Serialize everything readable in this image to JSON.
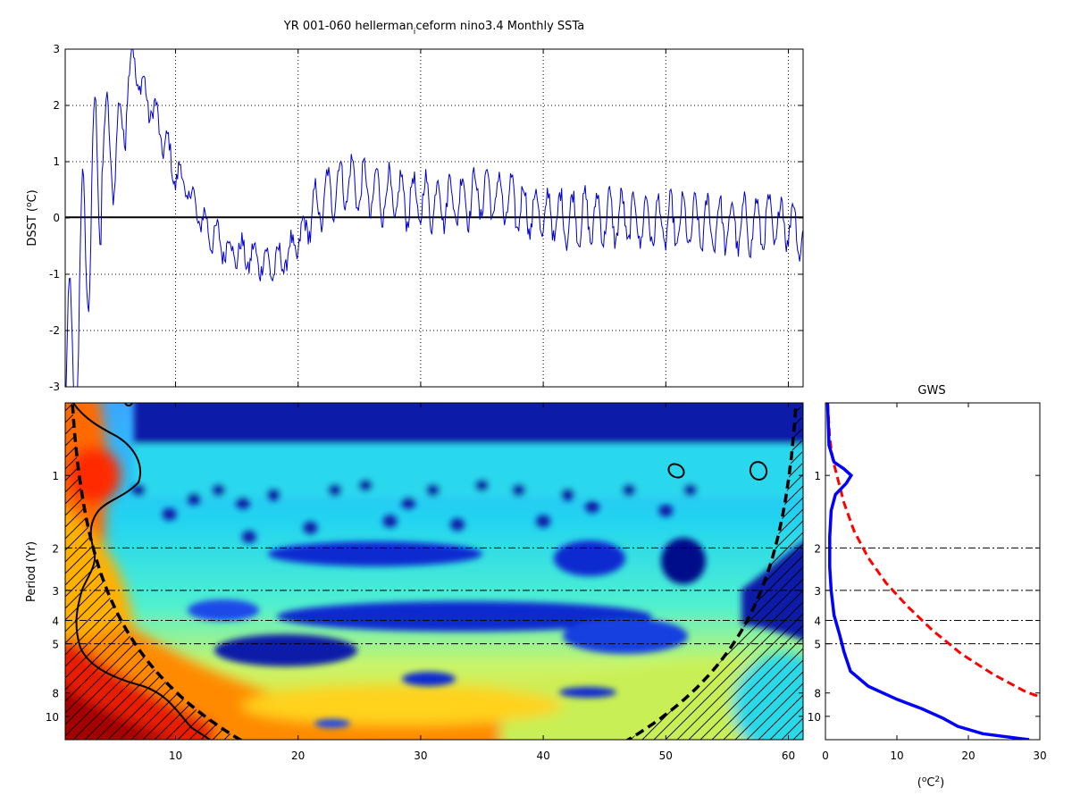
{
  "figure": {
    "title": "YR 001-060 hellerman",
    "title_sub": "i",
    "title_rest": "ceform nino3.4 Monthly SSTa"
  },
  "chart_data": [
    {
      "type": "line",
      "panel": "time-series",
      "ylabel": "DSST (°C)",
      "ylabel_parts": [
        "DSST (",
        "o",
        "C)"
      ],
      "xlim": [
        1,
        61.2
      ],
      "ylim": [
        -3,
        3
      ],
      "xticks": [
        10,
        20,
        30,
        40,
        50,
        60
      ],
      "yticks": [
        -3,
        -2,
        -1,
        0,
        1,
        2,
        3
      ],
      "grid": "dotted",
      "zero_line": true,
      "series_color": "#0000cc",
      "anchors": [
        [
          1,
          -2.1
        ],
        [
          1.6,
          -3.0
        ],
        [
          2.3,
          -1.0
        ],
        [
          3.0,
          0.1
        ],
        [
          3.6,
          0.8
        ],
        [
          4.3,
          1.5
        ],
        [
          5.0,
          1.0
        ],
        [
          5.6,
          1.6
        ],
        [
          6.5,
          2.9
        ],
        [
          7.2,
          2.3
        ],
        [
          8.0,
          2.0
        ],
        [
          9.0,
          1.4
        ],
        [
          10.0,
          0.8
        ],
        [
          11.0,
          0.5
        ],
        [
          12.0,
          0.0
        ],
        [
          13.0,
          -0.3
        ],
        [
          14.0,
          -0.5
        ],
        [
          15.0,
          -0.6
        ],
        [
          16.0,
          -0.7
        ],
        [
          17.0,
          -0.75
        ],
        [
          18.0,
          -0.85
        ],
        [
          19.0,
          -0.7
        ],
        [
          20.0,
          -0.45
        ],
        [
          21.0,
          0.0
        ],
        [
          22.0,
          0.3
        ],
        [
          23.0,
          0.55
        ],
        [
          24.0,
          0.65
        ],
        [
          25.0,
          0.55
        ],
        [
          26.0,
          0.45
        ],
        [
          28.0,
          0.35
        ],
        [
          30.0,
          0.3
        ],
        [
          32.0,
          0.3
        ],
        [
          34.0,
          0.35
        ],
        [
          35.0,
          0.45
        ],
        [
          36.0,
          0.4
        ],
        [
          38.0,
          0.2
        ],
        [
          40.0,
          0.05
        ],
        [
          42.0,
          0.0
        ],
        [
          44.0,
          0.0
        ],
        [
          46.0,
          0.0
        ],
        [
          48.0,
          -0.05
        ],
        [
          50.0,
          -0.1
        ],
        [
          52.0,
          -0.1
        ],
        [
          54.0,
          -0.1
        ],
        [
          56.0,
          -0.15
        ],
        [
          58.0,
          -0.1
        ],
        [
          60.0,
          -0.05
        ],
        [
          61.2,
          -0.3
        ]
      ],
      "annual_amplitude": 0.45
    },
    {
      "type": "heatmap",
      "panel": "wavelet-power-spectrum",
      "ylabel": "Period (Yr)",
      "xlim": [
        1,
        61.2
      ],
      "ylim_period": [
        0.5,
        12.5
      ],
      "yscale": "log",
      "xticks": [
        10,
        20,
        30,
        40,
        50,
        60
      ],
      "yticks": [
        1,
        2,
        3,
        4,
        5,
        8,
        10
      ],
      "reference_periods": [
        2,
        3,
        4,
        5
      ],
      "colormap": "jet",
      "cone_of_influence": "dashed, hatched outside",
      "significance_contours": "solid black"
    },
    {
      "type": "line",
      "panel": "global-wavelet-spectrum",
      "title": "GWS",
      "xlabel": "(°C²)",
      "xlabel_parts": [
        "(",
        "o",
        "C",
        "2",
        ")"
      ],
      "xlim": [
        0,
        30
      ],
      "xticks": [
        0,
        10,
        20,
        30
      ],
      "yticks": [
        1,
        2,
        3,
        4,
        5,
        8,
        10
      ],
      "series": [
        {
          "style": "solid",
          "color": "#0000ff",
          "points": [
            [
              0.3,
              0.5
            ],
            [
              0.5,
              0.75
            ],
            [
              1.2,
              0.88
            ],
            [
              2.6,
              0.94
            ],
            [
              3.6,
              1.0
            ],
            [
              2.9,
              1.08
            ],
            [
              1.4,
              1.2
            ],
            [
              0.8,
              1.4
            ],
            [
              0.6,
              1.8
            ],
            [
              0.6,
              2.4
            ],
            [
              0.8,
              3.0
            ],
            [
              1.2,
              3.8
            ],
            [
              2.0,
              4.6
            ],
            [
              2.6,
              5.4
            ],
            [
              3.5,
              6.5
            ],
            [
              6.0,
              7.5
            ],
            [
              10.0,
              8.5
            ],
            [
              13.5,
              9.3
            ],
            [
              16.5,
              10.2
            ],
            [
              18.5,
              11.0
            ],
            [
              22.0,
              11.8
            ],
            [
              28.5,
              12.5
            ]
          ]
        },
        {
          "style": "dashed",
          "color": "#ff0000",
          "points": [
            [
              0.3,
              0.5
            ],
            [
              0.6,
              0.7
            ],
            [
              1.0,
              0.85
            ],
            [
              1.6,
              1.0
            ],
            [
              2.6,
              1.3
            ],
            [
              4.0,
              1.7
            ],
            [
              6.0,
              2.2
            ],
            [
              8.5,
              2.8
            ],
            [
              11.5,
              3.5
            ],
            [
              15.0,
              4.4
            ],
            [
              19.0,
              5.5
            ],
            [
              23.5,
              6.7
            ],
            [
              28.0,
              7.9
            ],
            [
              30.0,
              8.3
            ]
          ]
        }
      ]
    }
  ]
}
